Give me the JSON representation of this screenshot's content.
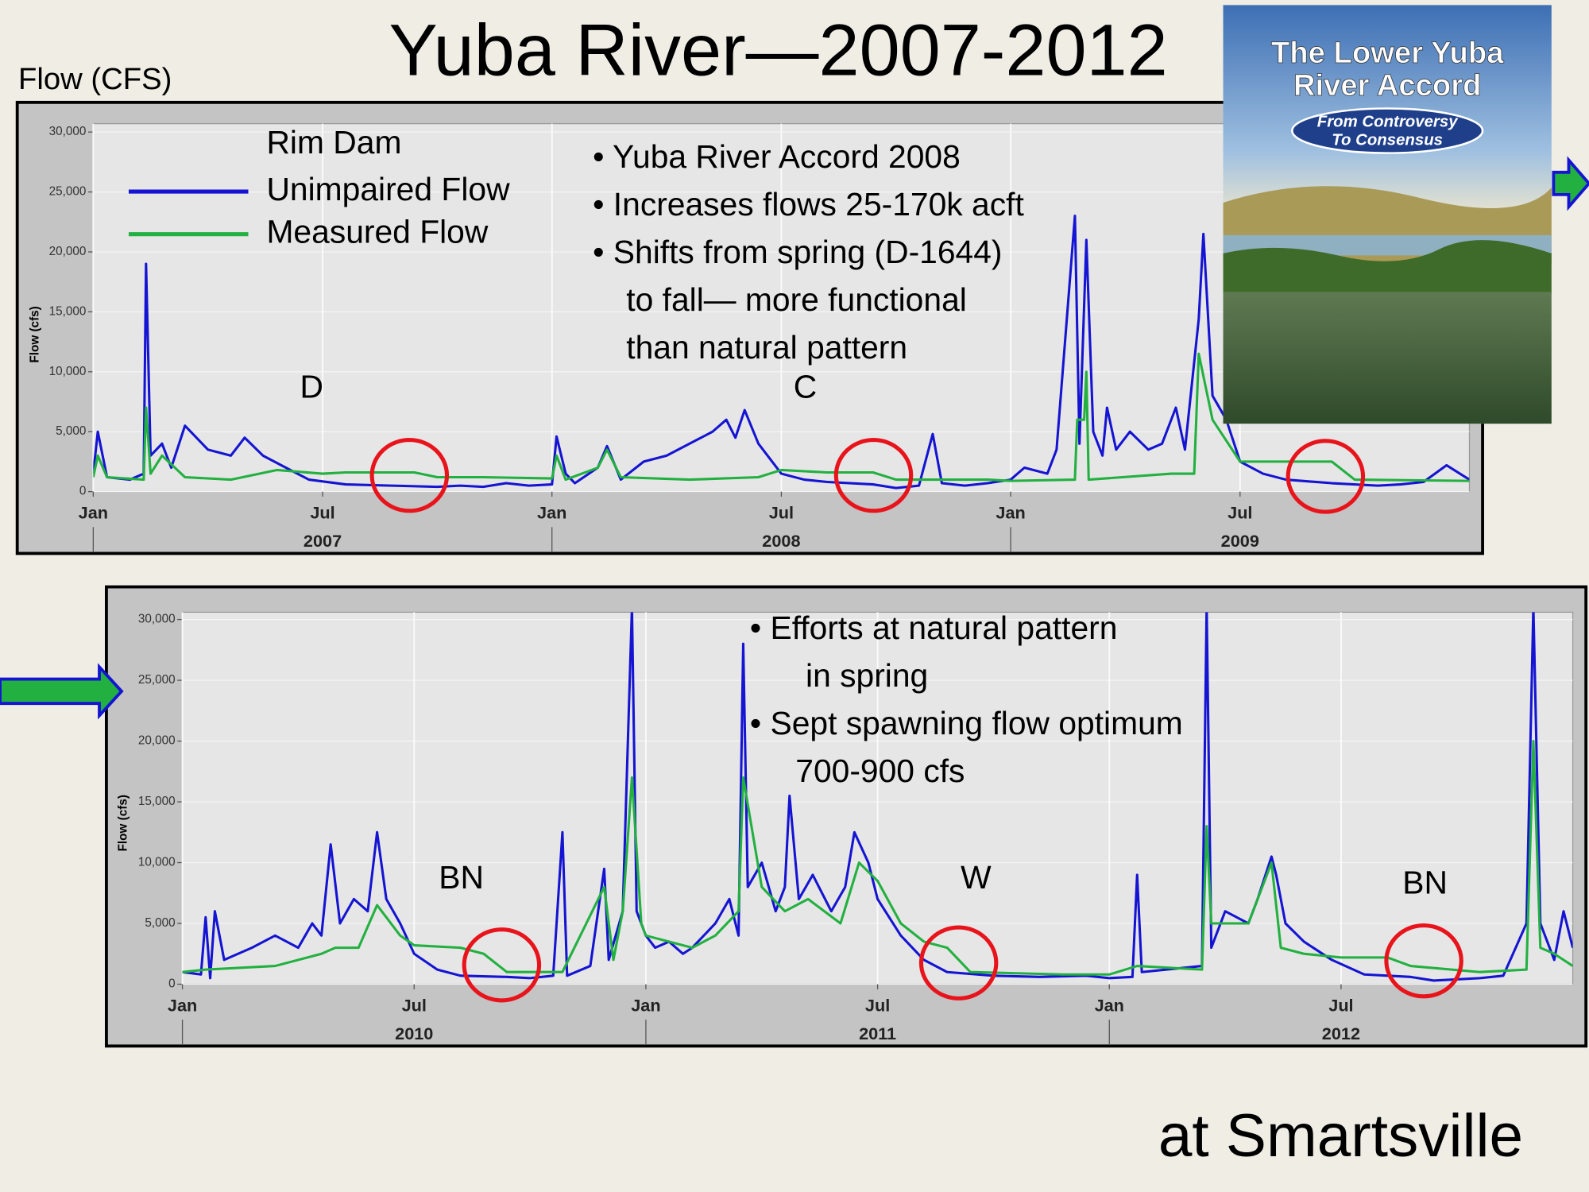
{
  "slide": {
    "title": "Yuba River—2007-2012",
    "axis_note": "Flow (CFS)",
    "footer": "at Smartsville",
    "book": {
      "title_lines": [
        "The Lower Yuba",
        "River Accord"
      ],
      "subtitle_lines": [
        "From Controversy",
        "To Consensus"
      ]
    }
  },
  "chart_data": [
    {
      "type": "line",
      "ylabel": "Flow (cfs)",
      "legend_title": "Rim Dam",
      "legend": "upper left",
      "grid": true,
      "xlim": [
        2007,
        2010
      ],
      "ylim": [
        0,
        30700
      ],
      "yticks": [
        0,
        {
          "value": 5000,
          "label": "5,000"
        },
        {
          "value": 10000,
          "label": "10,000"
        },
        {
          "value": 15000,
          "label": "15,000"
        },
        {
          "value": 20000,
          "label": "20,000"
        },
        {
          "value": 25000,
          "label": "25,000"
        },
        {
          "value": 30000,
          "label": "30,000"
        }
      ],
      "xticks": [
        {
          "value": 2007,
          "label": "Jan"
        },
        {
          "value": 2007.5,
          "label": "Jul"
        },
        {
          "value": 2008,
          "label": "Jan"
        },
        {
          "value": 2008.5,
          "label": "Jul"
        },
        {
          "value": 2009,
          "label": "Jan"
        },
        {
          "value": 2009.5,
          "label": "Jul"
        }
      ],
      "xticks2": [
        {
          "value": 2007.5,
          "label": "2007"
        },
        {
          "value": 2008.5,
          "label": "2008"
        },
        {
          "value": 2009.5,
          "label": "2009"
        }
      ],
      "series": [
        {
          "name": "Unimpaired Flow",
          "color": "#1414d2",
          "x": [
            2007.0,
            2007.01,
            2007.03,
            2007.08,
            2007.11,
            2007.115,
            2007.125,
            2007.15,
            2007.17,
            2007.2,
            2007.25,
            2007.3,
            2007.33,
            2007.37,
            2007.42,
            2007.47,
            2007.55,
            2007.65,
            2007.75,
            2007.8,
            2007.85,
            2007.9,
            2007.95,
            2008.0,
            2008.01,
            2008.03,
            2008.05,
            2008.1,
            2008.12,
            2008.15,
            2008.2,
            2008.25,
            2008.3,
            2008.35,
            2008.38,
            2008.4,
            2008.42,
            2008.45,
            2008.5,
            2008.55,
            2008.6,
            2008.7,
            2008.75,
            2008.8,
            2008.83,
            2008.85,
            2008.9,
            2008.95,
            2009.0,
            2009.03,
            2009.08,
            2009.1,
            2009.14,
            2009.15,
            2009.165,
            2009.18,
            2009.2,
            2009.21,
            2009.23,
            2009.26,
            2009.3,
            2009.33,
            2009.36,
            2009.38,
            2009.41,
            2009.42,
            2009.44,
            2009.47,
            2009.5,
            2009.55,
            2009.6,
            2009.7,
            2009.8,
            2009.85,
            2009.9,
            2009.95,
            2010.0
          ],
          "values": [
            1500,
            5000,
            1200,
            1000,
            1500,
            19000,
            3000,
            4000,
            2000,
            5500,
            3500,
            3000,
            4500,
            3000,
            2000,
            1000,
            600,
            500,
            400,
            500,
            400,
            700,
            500,
            600,
            4600,
            1500,
            700,
            2000,
            3800,
            1000,
            2500,
            3000,
            4000,
            5000,
            6000,
            4500,
            6800,
            4000,
            1500,
            1000,
            800,
            600,
            300,
            500,
            4800,
            700,
            500,
            700,
            1000,
            2000,
            1500,
            3500,
            23000,
            4000,
            21000,
            5000,
            3000,
            7000,
            3500,
            5000,
            3500,
            4000,
            7000,
            3500,
            14400,
            21500,
            8000,
            6000,
            2500,
            1500,
            1000,
            700,
            500,
            600,
            800,
            2200,
            1000
          ]
        },
        {
          "name": "Measured Flow",
          "color": "#22b040",
          "x": [
            2007.0,
            2007.01,
            2007.03,
            2007.11,
            2007.115,
            2007.125,
            2007.15,
            2007.2,
            2007.3,
            2007.4,
            2007.5,
            2007.55,
            2007.7,
            2007.75,
            2007.85,
            2008.0,
            2008.01,
            2008.03,
            2008.1,
            2008.12,
            2008.15,
            2008.3,
            2008.45,
            2008.5,
            2008.6,
            2008.7,
            2008.75,
            2008.95,
            2009.0,
            2009.14,
            2009.145,
            2009.16,
            2009.165,
            2009.17,
            2009.35,
            2009.4,
            2009.41,
            2009.44,
            2009.5,
            2009.7,
            2009.75,
            2010.0
          ],
          "values": [
            1200,
            3000,
            1200,
            1000,
            7000,
            1500,
            3000,
            1200,
            1000,
            1800,
            1500,
            1600,
            1600,
            1200,
            1200,
            1100,
            3000,
            1000,
            2000,
            3500,
            1200,
            1000,
            1200,
            1800,
            1600,
            1600,
            1000,
            1000,
            900,
            1000,
            6000,
            6000,
            10000,
            1000,
            1500,
            1500,
            11500,
            6000,
            2500,
            2500,
            1000,
            900
          ]
        }
      ],
      "annotations": [
        {
          "text": "• Yuba River Accord 2008"
        },
        {
          "text": "• Increases flows 25-170k acft"
        },
        {
          "text": "• Shifts from spring (D-1644)"
        },
        {
          "text": "to fall— more functional"
        },
        {
          "text": "than natural pattern"
        },
        {
          "text": "D"
        },
        {
          "text": "C"
        }
      ]
    },
    {
      "type": "line",
      "ylabel": "Flow (cfs)",
      "grid": true,
      "xlim": [
        2010,
        2013
      ],
      "ylim": [
        0,
        30600
      ],
      "yticks": [
        0,
        {
          "value": 5000,
          "label": "5,000"
        },
        {
          "value": 10000,
          "label": "10,000"
        },
        {
          "value": 15000,
          "label": "15,000"
        },
        {
          "value": 20000,
          "label": "20,000"
        },
        {
          "value": 25000,
          "label": "25,000"
        },
        {
          "value": 30000,
          "label": "30,000"
        }
      ],
      "xticks": [
        {
          "value": 2010,
          "label": "Jan"
        },
        {
          "value": 2010.5,
          "label": "Jul"
        },
        {
          "value": 2011,
          "label": "Jan"
        },
        {
          "value": 2011.5,
          "label": "Jul"
        },
        {
          "value": 2012,
          "label": "Jan"
        },
        {
          "value": 2012.5,
          "label": "Jul"
        }
      ],
      "xticks2": [
        {
          "value": 2010.5,
          "label": "2010"
        },
        {
          "value": 2011.5,
          "label": "2011"
        },
        {
          "value": 2012.5,
          "label": "2012"
        }
      ],
      "series": [
        {
          "color": "#1414d2",
          "x": [
            2010.0,
            2010.04,
            2010.05,
            2010.06,
            2010.07,
            2010.09,
            2010.15,
            2010.2,
            2010.25,
            2010.28,
            2010.3,
            2010.32,
            2010.34,
            2010.37,
            2010.4,
            2010.42,
            2010.44,
            2010.47,
            2010.5,
            2010.55,
            2010.6,
            2010.7,
            2010.75,
            2010.8,
            2010.82,
            2010.83,
            2010.88,
            2010.91,
            2010.92,
            2010.95,
            2010.97,
            2010.98,
            2011.0,
            2011.02,
            2011.05,
            2011.08,
            2011.1,
            2011.15,
            2011.18,
            2011.2,
            2011.21,
            2011.22,
            2011.25,
            2011.28,
            2011.3,
            2011.31,
            2011.33,
            2011.36,
            2011.4,
            2011.43,
            2011.45,
            2011.48,
            2011.5,
            2011.55,
            2011.6,
            2011.65,
            2011.75,
            2011.85,
            2011.95,
            2012.0,
            2012.05,
            2012.06,
            2012.07,
            2012.2,
            2012.21,
            2012.22,
            2012.25,
            2012.3,
            2012.32,
            2012.35,
            2012.36,
            2012.38,
            2012.42,
            2012.48,
            2012.55,
            2012.65,
            2012.7,
            2012.8,
            2012.85,
            2012.9,
            2012.915,
            2012.93,
            2012.96,
            2012.98,
            2013.0
          ],
          "values": [
            1000,
            800,
            5500,
            500,
            6000,
            2000,
            3000,
            4000,
            3000,
            5000,
            4000,
            11500,
            5000,
            7000,
            6000,
            12500,
            7000,
            5000,
            2500,
            1200,
            700,
            600,
            500,
            700,
            12500,
            700,
            1500,
            9500,
            2000,
            6000,
            31000,
            6000,
            4000,
            3000,
            3500,
            2500,
            3000,
            5000,
            7000,
            4000,
            28000,
            8000,
            10000,
            6000,
            8000,
            15500,
            7000,
            9000,
            6000,
            8000,
            12500,
            10000,
            7000,
            4000,
            2000,
            1000,
            700,
            600,
            700,
            500,
            600,
            9000,
            1000,
            1500,
            31000,
            3000,
            6000,
            5000,
            7000,
            10500,
            9000,
            5000,
            3500,
            2000,
            800,
            600,
            300,
            500,
            700,
            5000,
            31000,
            5000,
            2000,
            6000,
            3000
          ]
        },
        {
          "color": "#22b040",
          "x": [
            2010.0,
            2010.05,
            2010.2,
            2010.3,
            2010.33,
            2010.38,
            2010.42,
            2010.47,
            2010.5,
            2010.6,
            2010.65,
            2010.7,
            2010.82,
            2010.91,
            2010.93,
            2010.95,
            2010.97,
            2010.99,
            2011.0,
            2011.1,
            2011.15,
            2011.2,
            2011.21,
            2011.25,
            2011.3,
            2011.35,
            2011.42,
            2011.46,
            2011.5,
            2011.55,
            2011.6,
            2011.65,
            2011.7,
            2011.9,
            2012.0,
            2012.06,
            2012.2,
            2012.21,
            2012.22,
            2012.3,
            2012.35,
            2012.37,
            2012.42,
            2012.5,
            2012.6,
            2012.65,
            2012.8,
            2012.9,
            2012.915,
            2012.93,
            2012.96,
            2013.0
          ],
          "values": [
            1000,
            1200,
            1500,
            2500,
            3000,
            3000,
            6500,
            4000,
            3200,
            3000,
            2500,
            1000,
            1000,
            8000,
            2000,
            6000,
            17000,
            5000,
            4000,
            3000,
            4000,
            6000,
            17000,
            8000,
            6000,
            7000,
            5000,
            10000,
            8500,
            5000,
            3500,
            3000,
            1000,
            800,
            800,
            1500,
            1200,
            13000,
            5000,
            5000,
            10000,
            3000,
            2500,
            2200,
            2200,
            1500,
            1000,
            1200,
            20000,
            3000,
            2500,
            1500
          ]
        }
      ],
      "annotations": [
        {
          "text": "• Efforts at natural pattern"
        },
        {
          "text": "in spring"
        },
        {
          "text": "• Sept spawning flow optimum",
          "color": "#e8141c"
        },
        {
          "text": "700-900 cfs",
          "color": "#e8141c"
        },
        {
          "text": "BN"
        },
        {
          "text": "W"
        },
        {
          "text": "BN"
        }
      ]
    }
  ]
}
